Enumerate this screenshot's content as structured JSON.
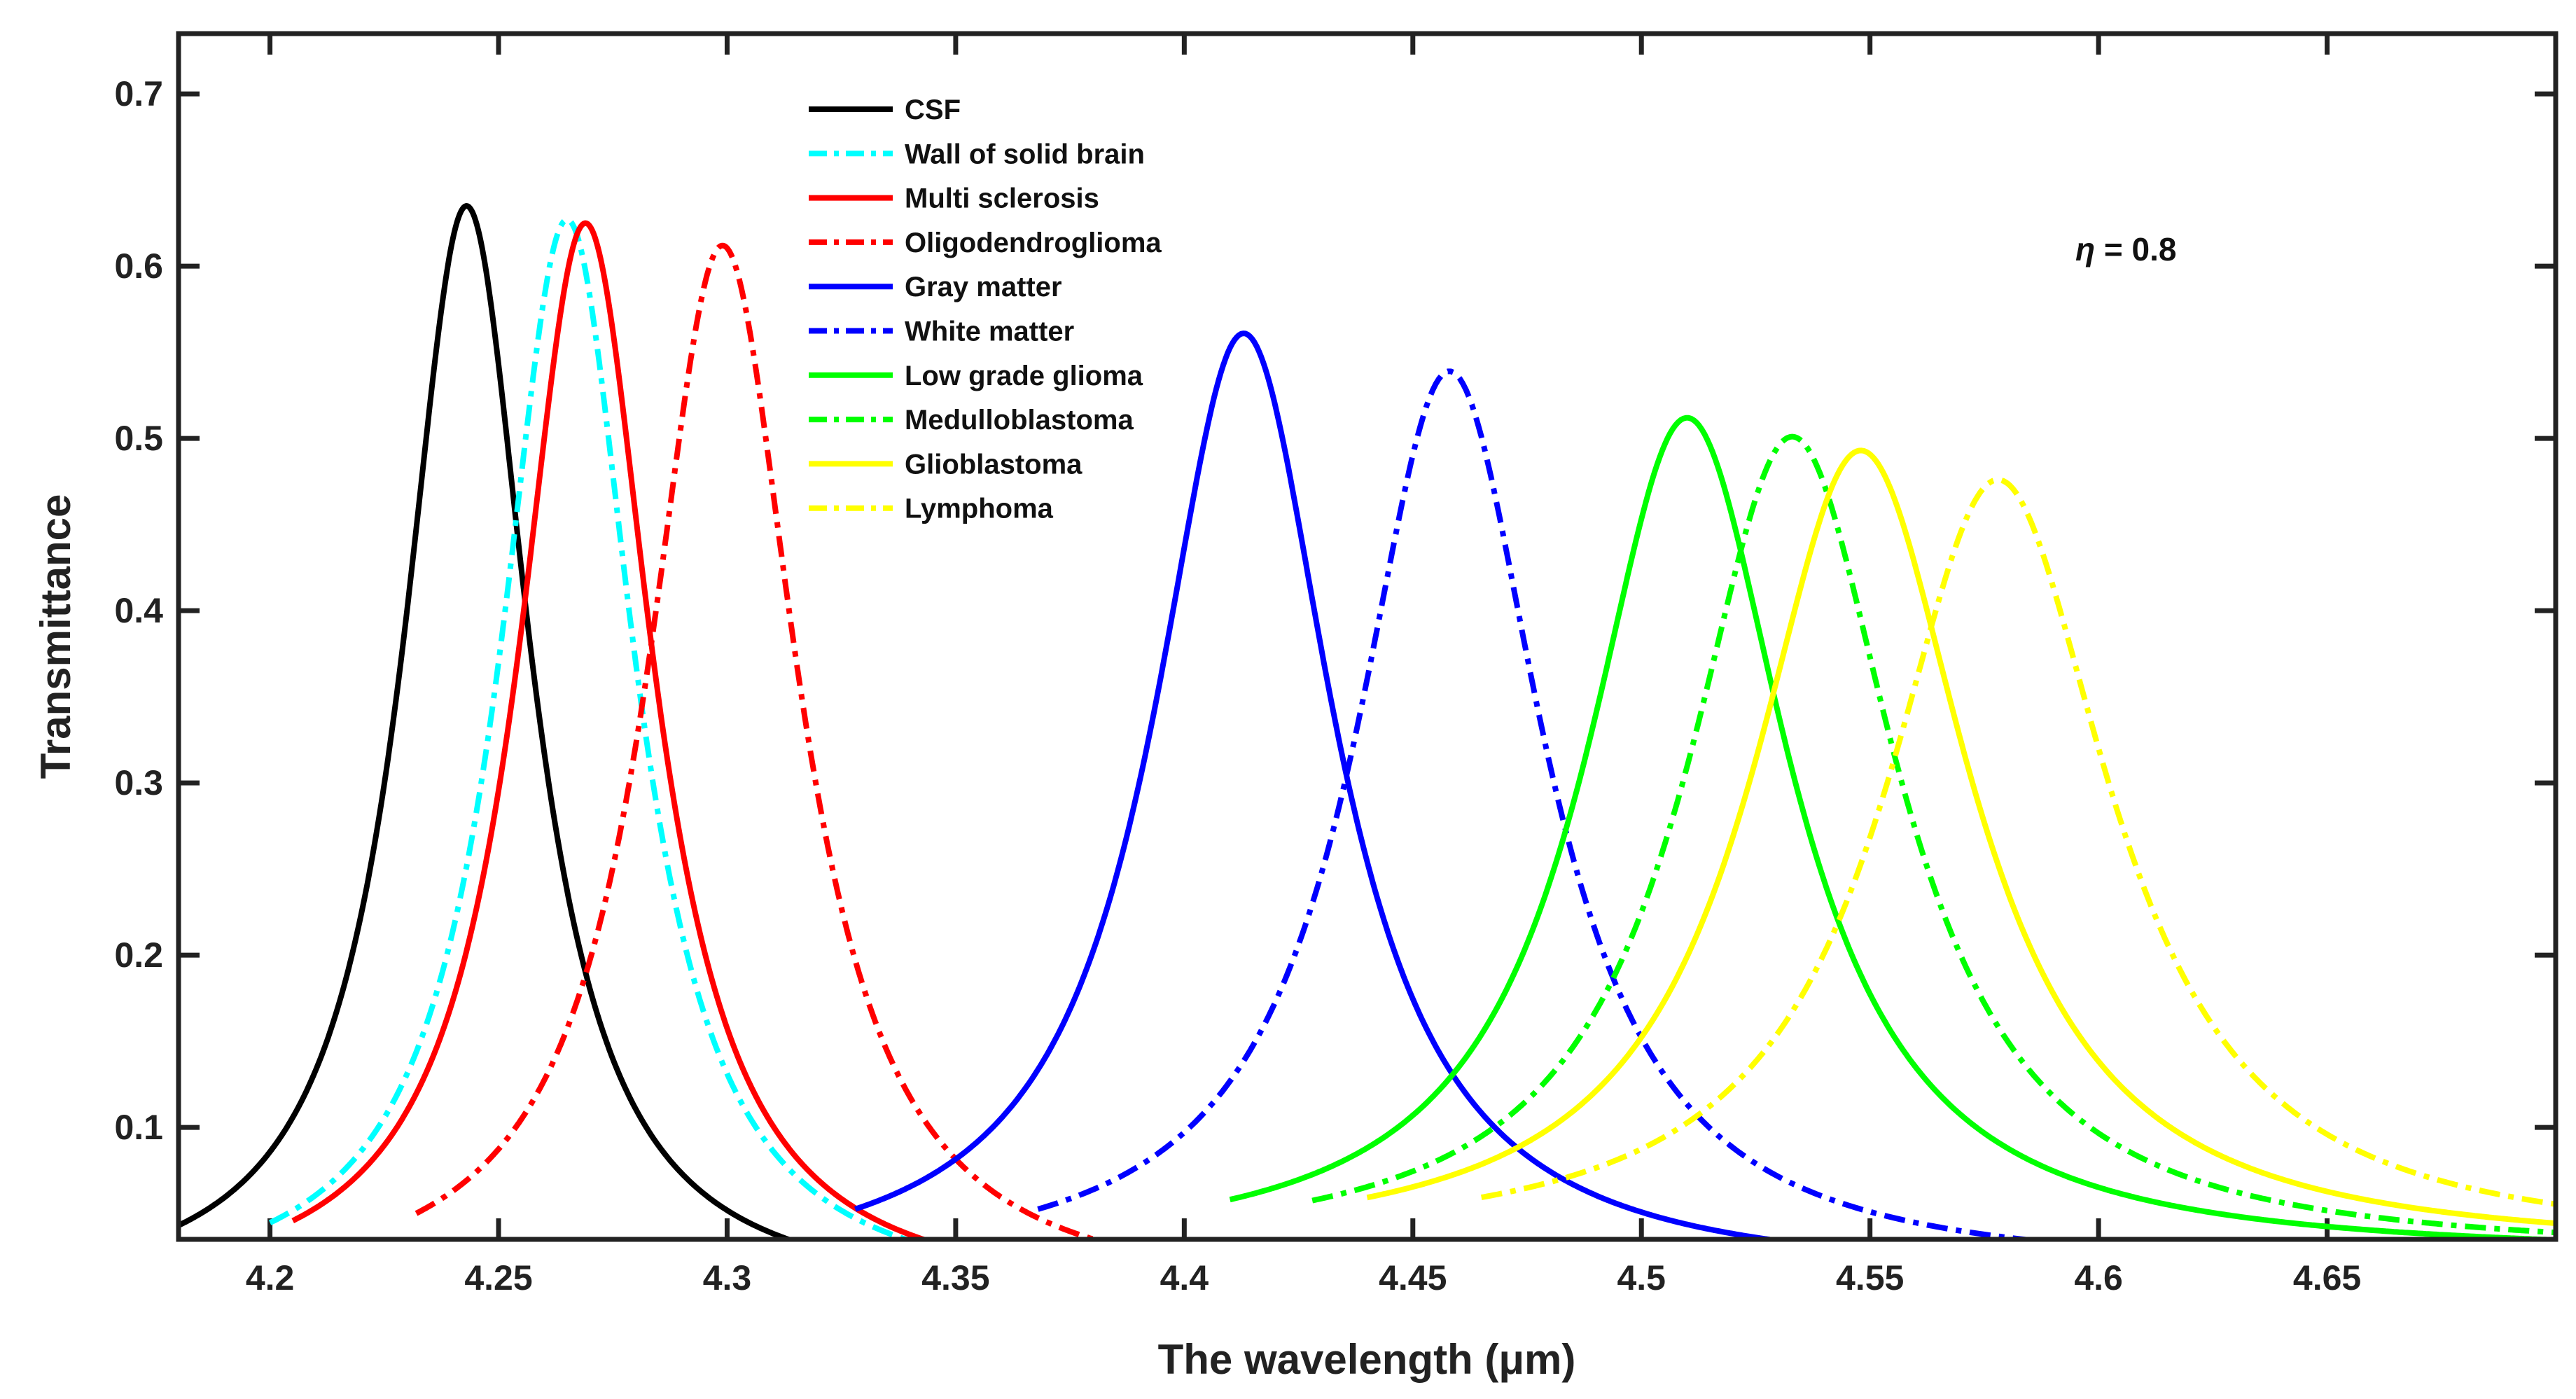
{
  "chart_data": {
    "type": "line",
    "title": "",
    "xlabel": "The wavelength (μm)",
    "ylabel": "Transmittance",
    "xlim": [
      4.18,
      4.7
    ],
    "ylim": [
      0.035,
      0.735
    ],
    "xticks": [
      4.2,
      4.25,
      4.3,
      4.35,
      4.4,
      4.45,
      4.5,
      4.55,
      4.6,
      4.65
    ],
    "xtick_labels": [
      "4.2",
      "4.25",
      "4.3",
      "4.35",
      "4.4",
      "4.45",
      "4.5",
      "4.55",
      "4.6",
      "4.65"
    ],
    "yticks": [
      0.1,
      0.2,
      0.3,
      0.4,
      0.5,
      0.6,
      0.7
    ],
    "ytick_labels": [
      "0.1",
      "0.2",
      "0.3",
      "0.4",
      "0.5",
      "0.6",
      "0.7"
    ],
    "annotation": {
      "symbol": "η",
      "text": " = 0.8"
    },
    "legend_position": "top-center",
    "series": [
      {
        "name": "CSF",
        "color": "#000000",
        "style": "solid",
        "peak_x": 4.243,
        "peak_y": 0.635,
        "hwhm": 0.017,
        "base": 0.0,
        "x_start": 4.18,
        "x_end": 4.325
      },
      {
        "name": "Wall of solid brain",
        "color": "#00ffff",
        "style": "dashdot",
        "peak_x": 4.265,
        "peak_y": 0.627,
        "hwhm": 0.018,
        "base": 0.0,
        "x_start": 4.2,
        "x_end": 4.35
      },
      {
        "name": "Multi sclerosis",
        "color": "#ff0000",
        "style": "solid",
        "peak_x": 4.269,
        "peak_y": 0.625,
        "hwhm": 0.018,
        "base": 0.0,
        "x_start": 4.205,
        "x_end": 4.358
      },
      {
        "name": "Oligodendroglioma",
        "color": "#ff0000",
        "style": "dashdot",
        "peak_x": 4.299,
        "peak_y": 0.612,
        "hwhm": 0.02,
        "base": 0.0,
        "x_start": 4.232,
        "x_end": 4.395
      },
      {
        "name": "Gray matter",
        "color": "#0000ff",
        "style": "solid",
        "peak_x": 4.413,
        "peak_y": 0.561,
        "hwhm": 0.024,
        "base": 0.012,
        "x_start": 4.328,
        "x_end": 4.572
      },
      {
        "name": "White matter",
        "color": "#0000ff",
        "style": "dashdot",
        "peak_x": 4.458,
        "peak_y": 0.539,
        "hwhm": 0.025,
        "base": 0.015,
        "x_start": 4.368,
        "x_end": 4.7
      },
      {
        "name": "Low grade glioma",
        "color": "#00ff00",
        "style": "solid",
        "peak_x": 4.51,
        "peak_y": 0.512,
        "hwhm": 0.027,
        "base": 0.025,
        "x_start": 4.41,
        "x_end": 4.7
      },
      {
        "name": "Medulloblastoma",
        "color": "#00ff00",
        "style": "dashdot",
        "peak_x": 4.533,
        "peak_y": 0.501,
        "hwhm": 0.028,
        "base": 0.026,
        "x_start": 4.428,
        "x_end": 4.7
      },
      {
        "name": "Glioblastoma",
        "color": "#ffff00",
        "style": "solid",
        "peak_x": 4.548,
        "peak_y": 0.493,
        "hwhm": 0.029,
        "base": 0.028,
        "x_start": 4.44,
        "x_end": 4.7
      },
      {
        "name": "Lymphoma",
        "color": "#ffff00",
        "style": "dashdot",
        "peak_x": 4.578,
        "peak_y": 0.476,
        "hwhm": 0.03,
        "base": 0.03,
        "x_start": 4.465,
        "x_end": 4.7
      }
    ]
  }
}
